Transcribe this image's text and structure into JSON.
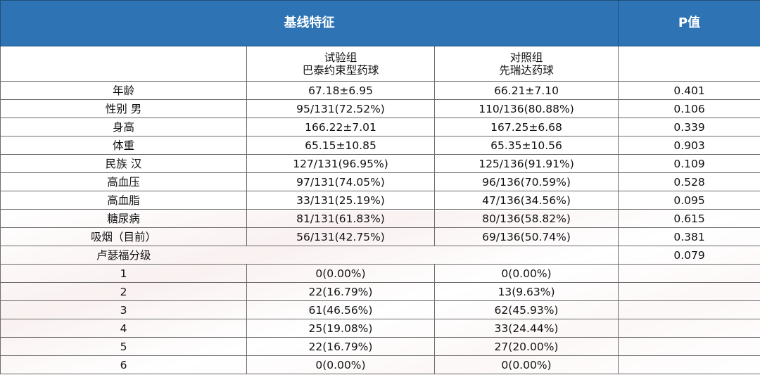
{
  "header": {
    "title": "基线特征",
    "p_value": "P值"
  },
  "subheader": {
    "group1_line1": "试验组",
    "group1_line2": "巴泰约束型药球",
    "group2_line1": "对照组",
    "group2_line2": "先瑞达药球"
  },
  "rows": [
    {
      "label": "年龄",
      "g1": "67.18±6.95",
      "g2": "66.21±7.10",
      "p": "0.401"
    },
    {
      "label": "性别 男",
      "g1": "95/131(72.52%)",
      "g2": "110/136(80.88%)",
      "p": "0.106"
    },
    {
      "label": "身高",
      "g1": "166.22±7.01",
      "g2": "167.25±6.68",
      "p": "0.339"
    },
    {
      "label": "体重",
      "g1": "65.15±10.85",
      "g2": "65.35±10.56",
      "p": "0.903"
    },
    {
      "label": "民族 汉",
      "g1": "127/131(96.95%)",
      "g2": "125/136(91.91%)",
      "p": "0.109"
    },
    {
      "label": "高血压",
      "g1": "97/131(74.05%)",
      "g2": "96/136(70.59%)",
      "p": "0.528"
    },
    {
      "label": "高血脂",
      "g1": "33/131(25.19%)",
      "g2": "47/136(34.56%)",
      "p": "0.095"
    },
    {
      "label": "糖尿病",
      "g1": "81/131(61.83%)",
      "g2": "80/136(58.82%)",
      "p": "0.615"
    },
    {
      "label": "吸烟（目前）",
      "g1": "56/131(42.75%)",
      "g2": "69/136(50.74%)",
      "p": "0.381"
    }
  ],
  "rutherford": {
    "label": "卢瑟福分级",
    "p": "0.079",
    "grades": [
      {
        "label": "1",
        "g1": "0(0.00%)",
        "g2": "0(0.00%)"
      },
      {
        "label": "2",
        "g1": "22(16.79%)",
        "g2": "13(9.63%)"
      },
      {
        "label": "3",
        "g1": "61(46.56%)",
        "g2": "62(45.93%)"
      },
      {
        "label": "4",
        "g1": "25(19.08%)",
        "g2": "33(24.44%)"
      },
      {
        "label": "5",
        "g1": "22(16.79%)",
        "g2": "27(20.00%)"
      },
      {
        "label": "6",
        "g1": "0(0.00%)",
        "g2": "0(0.00%)"
      }
    ]
  },
  "colors": {
    "header_bg": "#2e74b5",
    "header_text": "#ffffff"
  }
}
